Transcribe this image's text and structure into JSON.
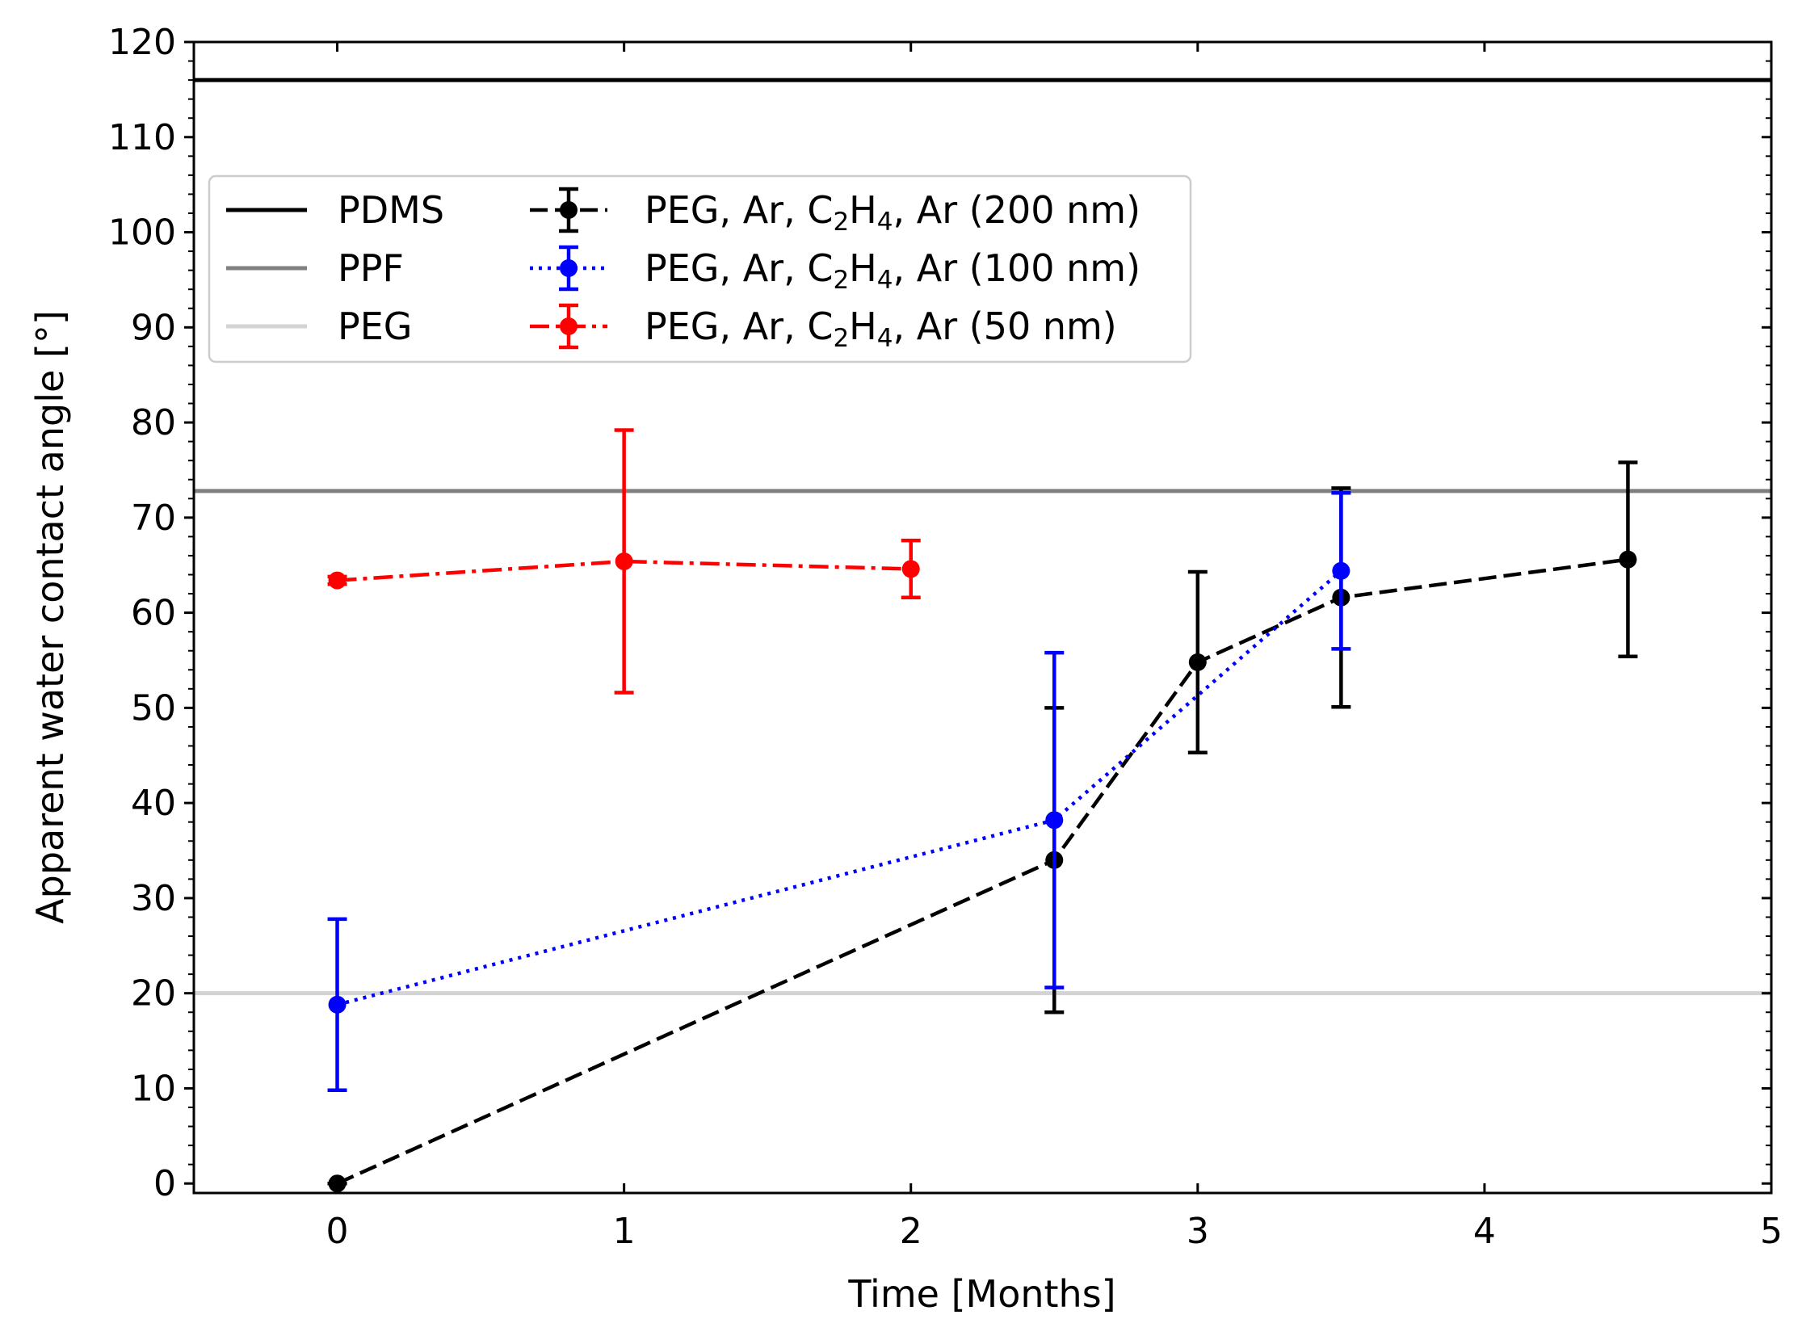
{
  "chart_data": {
    "type": "line",
    "title": "",
    "xlabel": "Time [Months]",
    "ylabel": "Apparent water contact angle [°]",
    "xlim": [
      -0.5,
      5
    ],
    "ylim": [
      -1,
      120
    ],
    "xticks": [
      0,
      1,
      2,
      3,
      4,
      5
    ],
    "yticks": [
      0,
      10,
      20,
      30,
      40,
      50,
      60,
      70,
      80,
      90,
      100,
      110,
      120
    ],
    "grid": false,
    "legend_position": "upper-left",
    "reference_lines": [
      {
        "name": "PDMS",
        "value": 116,
        "color": "#000000"
      },
      {
        "name": "PPF",
        "value": 72.8,
        "color": "#808080"
      },
      {
        "name": "PEG",
        "value": 20,
        "color": "#d3d3d3"
      }
    ],
    "series": [
      {
        "name_parts": [
          "PEG, Ar, C",
          "2",
          "H",
          "4",
          ", Ar (200 nm)"
        ],
        "color": "#000000",
        "linestyle": "dashed",
        "x": [
          0,
          2.5,
          3,
          3.5,
          4.5
        ],
        "y": [
          0,
          34,
          54.8,
          61.6,
          65.6
        ],
        "yerr": [
          0,
          16,
          9.5,
          11.5,
          10.2
        ]
      },
      {
        "name_parts": [
          "PEG, Ar, C",
          "2",
          "H",
          "4",
          ", Ar (100 nm)"
        ],
        "color": "#0000ff",
        "linestyle": "dotted",
        "x": [
          0,
          2.5,
          3.5
        ],
        "y": [
          18.8,
          38.2,
          64.4
        ],
        "yerr": [
          9,
          17.6,
          8.2
        ]
      },
      {
        "name_parts": [
          "PEG, Ar, C",
          "2",
          "H",
          "4",
          ", Ar (50 nm)"
        ],
        "color": "#ff0000",
        "linestyle": "dashdot",
        "x": [
          0,
          1,
          2
        ],
        "y": [
          63.4,
          65.4,
          64.6
        ],
        "yerr": [
          0.4,
          13.8,
          3
        ]
      }
    ]
  }
}
